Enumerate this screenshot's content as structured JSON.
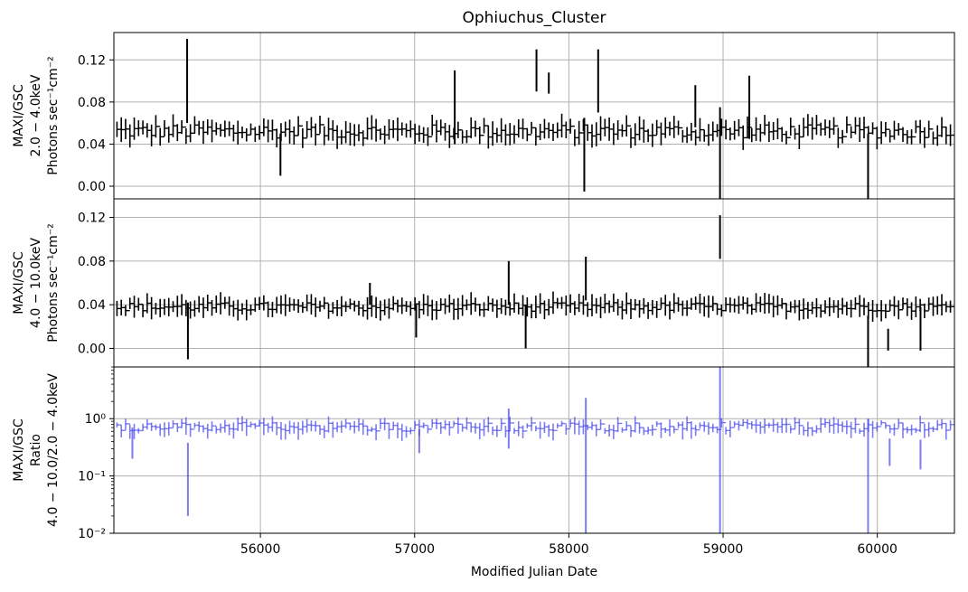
{
  "chart_data": {
    "type": "line",
    "title": "Ophiuchus_Cluster",
    "xlabel": "Modified Julian Date",
    "xlim": [
      55050,
      60500
    ],
    "x_ticks": [
      56000,
      57000,
      58000,
      59000,
      60000
    ],
    "grid": true,
    "panels": [
      {
        "name": "soft",
        "ylabel_lines": [
          "MAXI/GSC",
          "2.0 − 4.0keV",
          "Photons sec⁻¹cm⁻²"
        ],
        "ylim": [
          -0.012,
          0.146
        ],
        "y_ticks": [
          0.0,
          0.04,
          0.08,
          0.12
        ],
        "y_tick_labels": [
          "0.00",
          "0.04",
          "0.08",
          "0.12"
        ],
        "scale": "linear",
        "color": "#000000",
        "series": {
          "x_start": 55070,
          "x_step": 28,
          "count": 195,
          "base": 0.052,
          "scatter": 0.0065,
          "err": 0.009,
          "outliers": [
            [
              55525,
              0.1,
              0.04
            ],
            [
              57260,
              0.075,
              0.035
            ],
            [
              57790,
              0.11,
              0.02
            ],
            [
              57870,
              0.098,
              0.01
            ],
            [
              58190,
              0.1,
              0.03
            ],
            [
              58100,
              0.03,
              0.035
            ],
            [
              58980,
              0.03,
              0.045
            ],
            [
              59170,
              0.075,
              0.03
            ],
            [
              59940,
              0.01,
              0.04
            ],
            [
              58820,
              0.076,
              0.02
            ],
            [
              56130,
              0.03,
              0.02
            ]
          ]
        }
      },
      {
        "name": "hard",
        "ylabel_lines": [
          "MAXI/GSC",
          "4.0 − 10.0keV",
          "Photons sec⁻¹cm⁻²"
        ],
        "ylim": [
          -0.017,
          0.137
        ],
        "y_ticks": [
          0.0,
          0.04,
          0.08,
          0.12
        ],
        "y_tick_labels": [
          "0.00",
          "0.04",
          "0.08",
          "0.12"
        ],
        "scale": "linear",
        "color": "#000000",
        "series": {
          "x_start": 55070,
          "x_step": 28,
          "count": 195,
          "base": 0.038,
          "scatter": 0.004,
          "err": 0.008,
          "outliers": [
            [
              55530,
              0.016,
              0.026
            ],
            [
              58980,
              0.102,
              0.02
            ],
            [
              59940,
              0.0,
              0.03
            ],
            [
              57610,
              0.06,
              0.02
            ],
            [
              58110,
              0.064,
              0.02
            ],
            [
              57720,
              0.02,
              0.02
            ],
            [
              60070,
              0.008,
              0.01
            ],
            [
              60280,
              0.018,
              0.02
            ],
            [
              57010,
              0.025,
              0.015
            ],
            [
              56710,
              0.05,
              0.01
            ]
          ]
        }
      },
      {
        "name": "ratio",
        "ylabel_lines": [
          "MAXI/GSC",
          "Ratio",
          "4.0 − 10.0/2.0 − 4.0keV"
        ],
        "ylim": [
          0.01,
          8
        ],
        "y_ticks": [
          0.01,
          0.1,
          1
        ],
        "y_tick_labels": [
          "10⁻²",
          "10⁻¹",
          "10⁰"
        ],
        "scale": "log",
        "color": "#4444ee",
        "series": {
          "x_start": 55070,
          "x_step": 28,
          "count": 195,
          "base": 0.72,
          "scatter": 0.07,
          "err": 0.12,
          "outliers": [
            [
              55530,
              0.2,
              0.18
            ],
            [
              58980,
              0.3,
              8.0
            ],
            [
              59940,
              0.2,
              0.8
            ],
            [
              55170,
              0.45,
              0.25
            ],
            [
              58110,
              1.1,
              1.2
            ],
            [
              60080,
              0.3,
              0.15
            ],
            [
              60280,
              0.28,
              0.15
            ],
            [
              57030,
              0.45,
              0.2
            ],
            [
              57610,
              0.9,
              0.6
            ]
          ]
        }
      }
    ]
  }
}
